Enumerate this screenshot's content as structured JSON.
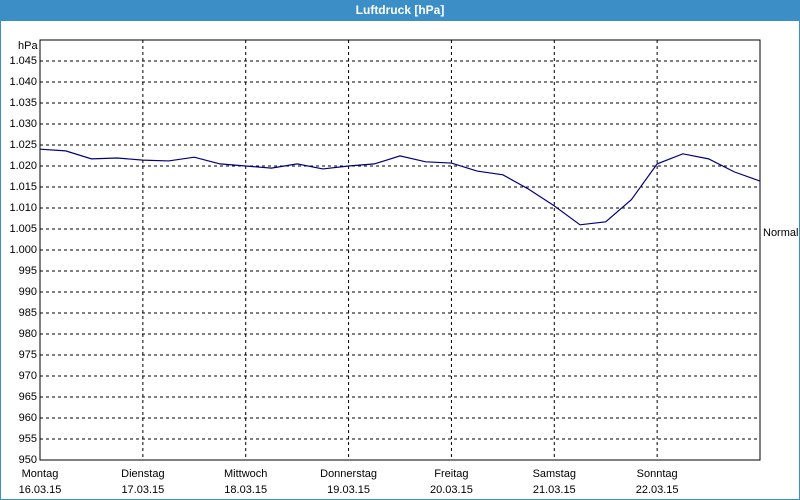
{
  "chart_data": {
    "type": "line",
    "title": "Luftdruck [hPa]",
    "y_unit_label": "hPa",
    "annotation": "Normal",
    "days": [
      {
        "day": "Montag",
        "date": "16.03.15"
      },
      {
        "day": "Dienstag",
        "date": "17.03.15"
      },
      {
        "day": "Mittwoch",
        "date": "18.03.15"
      },
      {
        "day": "Donnerstag",
        "date": "19.03.15"
      },
      {
        "day": "Freitag",
        "date": "20.03.15"
      },
      {
        "day": "Samstag",
        "date": "21.03.15"
      },
      {
        "day": "Sonntag",
        "date": "22.03.15"
      }
    ],
    "series": [
      {
        "color": "#000080",
        "values": [
          1024.0,
          1023.6,
          1021.7,
          1021.9,
          1021.4,
          1021.2,
          1022.1,
          1020.5,
          1020.0,
          1019.5,
          1020.5,
          1019.3,
          1020.0,
          1020.5,
          1022.4,
          1021.0,
          1020.7,
          1018.8,
          1017.9,
          1014.5,
          1010.5,
          1006.0,
          1006.7,
          1012.0,
          1020.5,
          1022.9,
          1021.7,
          1018.6,
          1016.4
        ]
      }
    ],
    "ylim": [
      950,
      1050
    ],
    "yticks": [
      950,
      955,
      960,
      965,
      970,
      975,
      980,
      985,
      990,
      995,
      {
        "value": 1000,
        "label": "1.000"
      },
      {
        "value": 1005,
        "label": "1.005"
      },
      {
        "value": 1010,
        "label": "1.010"
      },
      {
        "value": 1015,
        "label": "1.015"
      },
      {
        "value": 1020,
        "label": "1.020"
      },
      {
        "value": 1025,
        "label": "1.025"
      },
      {
        "value": 1030,
        "label": "1.030"
      },
      {
        "value": 1035,
        "label": "1.035"
      },
      {
        "value": 1040,
        "label": "1.040"
      },
      {
        "value": 1045,
        "label": "1.045"
      }
    ],
    "grid": true
  }
}
